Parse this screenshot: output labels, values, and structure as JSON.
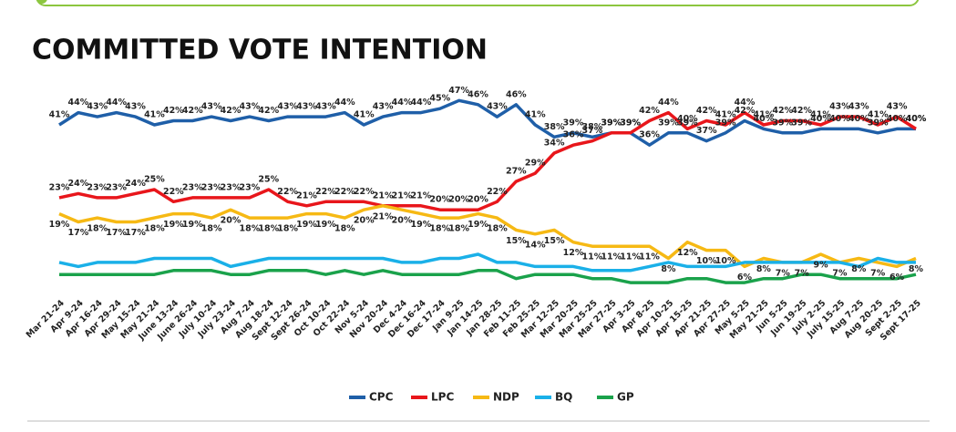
{
  "chart_data": {
    "type": "line",
    "title": "COMMITTED VOTE INTENTION",
    "categories": [
      "Mar 21-24",
      "Apr 9-24",
      "Apr 16-24",
      "Apr 29-24",
      "May 15-24",
      "May 21-24",
      "June 13-24",
      "June 26-24",
      "July 10-24",
      "July 23-24",
      "Aug 7-24",
      "Aug 18-24",
      "Sept 12-24",
      "Sept 26-24",
      "Oct 10-24",
      "Oct 22-24",
      "Nov 5-24",
      "Nov 20-24",
      "Dec 4-24",
      "Dec 16-24",
      "Dec 17-24",
      "Jan 9-25",
      "Jan 14-25",
      "Jan 28-25",
      "Feb 11-25",
      "Feb 25-25",
      "Mar 12-25",
      "Mar 20-25",
      "Mar 25-25",
      "Mar 27-25",
      "Apr 3-25",
      "Apr 8-25",
      "Apr 10-25",
      "Apr 15-25",
      "Apr 21-25",
      "Apr 27-25",
      "May 5-25",
      "May 21-25",
      "Jun 5-25",
      "Jun 19-25",
      "July 2-25",
      "July 15-25",
      "Aug 7-25",
      "Aug 20-25",
      "Sept 2-25",
      "Sept 17-25"
    ],
    "ylim": [
      0,
      50
    ],
    "series": [
      {
        "name": "CPC",
        "color": "#1f5fa8",
        "label_pos": "above",
        "values": [
          41,
          44,
          43,
          44,
          43,
          41,
          42,
          42,
          43,
          42,
          43,
          42,
          43,
          43,
          43,
          44,
          41,
          43,
          44,
          44,
          45,
          47,
          46,
          43,
          46,
          41,
          38,
          39,
          38,
          39,
          39,
          36,
          39,
          39,
          37,
          39,
          42,
          40,
          39,
          39,
          40,
          40,
          40,
          39,
          40,
          40
        ],
        "value_labels": [
          "41%",
          "44%",
          "43%",
          "44%",
          "43%",
          "41%",
          "42%",
          "42%",
          "43%",
          "42%",
          "43%",
          "42%",
          "43%",
          "43%",
          "43%",
          "44%",
          "41%",
          "43%",
          "44%",
          "44%",
          "45%",
          "47%",
          "46%",
          "43%",
          "46%",
          "41%",
          "38%",
          "39%",
          "38%",
          "39%",
          "39%",
          "36%",
          "39%",
          "39%",
          "37%",
          "39%",
          "42%",
          "40%",
          "39%",
          "39%",
          "40%",
          "40%",
          "40%",
          "39%",
          "40%",
          "40%"
        ]
      },
      {
        "name": "LPC",
        "color": "#e8161b",
        "label_pos": "above",
        "values": [
          23,
          24,
          23,
          23,
          24,
          25,
          22,
          23,
          23,
          23,
          23,
          25,
          22,
          21,
          22,
          22,
          22,
          21,
          21,
          21,
          20,
          20,
          20,
          22,
          27,
          29,
          34,
          36,
          37,
          39,
          39,
          42,
          44,
          40,
          42,
          41,
          44,
          41,
          42,
          42,
          41,
          43,
          43,
          41,
          43,
          40
        ],
        "value_labels": [
          "23%",
          "24%",
          "23%",
          "23%",
          "24%",
          "25%",
          "22%",
          "23%",
          "23%",
          "23%",
          "23%",
          "25%",
          "22%",
          "21%",
          "22%",
          "22%",
          "22%",
          "21%",
          "21%",
          "21%",
          "20%",
          "20%",
          "20%",
          "22%",
          "27%",
          "29%",
          "34%",
          "36%",
          "37%",
          "39%",
          "39%",
          "42%",
          "44%",
          "40%",
          "42%",
          "41%",
          "44%",
          "41%",
          "42%",
          "42%",
          "41%",
          "43%",
          "43%",
          "41%",
          "43%",
          "40%"
        ]
      },
      {
        "name": "NDP",
        "color": "#f6b914",
        "label_pos": "below",
        "values": [
          19,
          17,
          18,
          17,
          17,
          18,
          19,
          19,
          18,
          20,
          18,
          18,
          18,
          19,
          19,
          18,
          20,
          21,
          20,
          19,
          18,
          18,
          19,
          18,
          15,
          14,
          15,
          12,
          11,
          11,
          11,
          11,
          8,
          12,
          10,
          10,
          6,
          8,
          7,
          7,
          9,
          7,
          8,
          7,
          6,
          8
        ],
        "value_labels": [
          "19%",
          "17%",
          "18%",
          "17%",
          "17%",
          "18%",
          "19%",
          "19%",
          "18%",
          "20%",
          "18%",
          "18%",
          "18%",
          "19%",
          "19%",
          "18%",
          "20%",
          "21%",
          "20%",
          "19%",
          "18%",
          "18%",
          "19%",
          "18%",
          "15%",
          "14%",
          "15%",
          "12%",
          "11%",
          "11%",
          "11%",
          "11%",
          "8%",
          "12%",
          "10%",
          "10%",
          "6%",
          "8%",
          "7%",
          "7%",
          "9%",
          "7%",
          "8%",
          "7%",
          "6%",
          "8%"
        ]
      },
      {
        "name": "BQ",
        "color": "#1ab0e8",
        "values": [
          7,
          6,
          7,
          7,
          7,
          8,
          8,
          8,
          8,
          6,
          7,
          8,
          8,
          8,
          8,
          8,
          8,
          8,
          7,
          7,
          8,
          8,
          9,
          7,
          7,
          6,
          6,
          6,
          5,
          5,
          5,
          6,
          7,
          6,
          6,
          6,
          7,
          7,
          7,
          7,
          7,
          7,
          6,
          8,
          7,
          7
        ]
      },
      {
        "name": "GP",
        "color": "#1aa24b",
        "values": [
          4,
          4,
          4,
          4,
          4,
          4,
          5,
          5,
          5,
          4,
          4,
          5,
          5,
          5,
          4,
          5,
          4,
          5,
          4,
          4,
          4,
          4,
          5,
          5,
          3,
          4,
          4,
          4,
          3,
          3,
          2,
          2,
          2,
          3,
          3,
          2,
          2,
          3,
          3,
          4,
          4,
          3,
          3,
          3,
          3,
          4
        ]
      }
    ]
  }
}
